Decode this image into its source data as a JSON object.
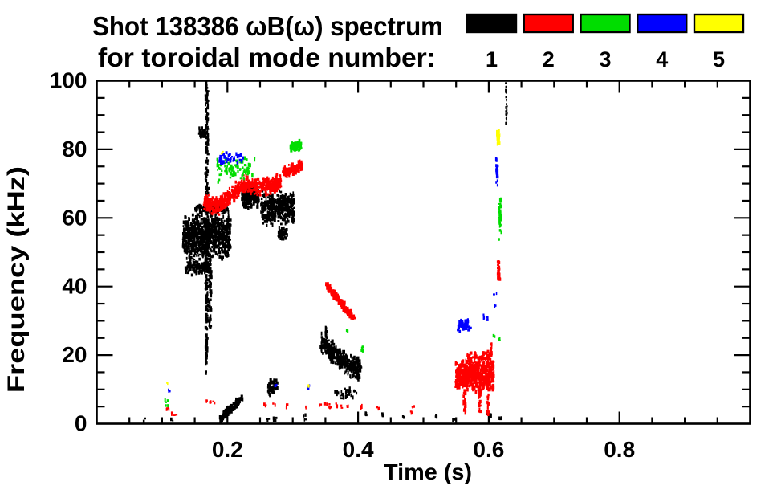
{
  "header": {
    "title_line1": "Shot 138386 ωB(ω) spectrum",
    "title_line2": "for toroidal mode number:"
  },
  "legend": {
    "items": [
      {
        "label": "1",
        "color": "#000000"
      },
      {
        "label": "2",
        "color": "#ff0000"
      },
      {
        "label": "3",
        "color": "#00dd00"
      },
      {
        "label": "4",
        "color": "#0000ff"
      },
      {
        "label": "5",
        "color": "#ffff00"
      }
    ]
  },
  "chart_data": {
    "type": "scatter",
    "title": "Shot 138386 ωB(ω) spectrum for toroidal mode number:",
    "xlabel": "Time (s)",
    "ylabel": "Frequency (kHz)",
    "xlim": [
      0,
      1.0
    ],
    "ylim": [
      0,
      100
    ],
    "xticks": [
      0.2,
      0.4,
      0.6,
      0.8
    ],
    "xtick_labels": [
      "0.2",
      "0.4",
      "0.6",
      "0.8"
    ],
    "x_minor_step": 0.05,
    "yticks": [
      0,
      20,
      40,
      60,
      80,
      100
    ],
    "ytick_labels": [
      "0",
      "20",
      "40",
      "60",
      "80",
      "100"
    ],
    "y_minor_step": 5,
    "grid": false,
    "legend_position": "top-right",
    "series": [
      {
        "name": "n=1",
        "color": "#000000",
        "features": [
          {
            "k": "cloud",
            "t": [
              0.132,
              0.205
            ],
            "f": [
              47,
              62
            ],
            "n": 750
          },
          {
            "k": "cloud",
            "t": [
              0.135,
              0.175
            ],
            "f": [
              43,
              48
            ],
            "n": 120
          },
          {
            "k": "cloud",
            "t": [
              0.15,
              0.202
            ],
            "f": [
              61,
              64
            ],
            "n": 100
          },
          {
            "k": "vline",
            "t": 0.1685,
            "f": [
              30,
              99.5
            ],
            "n": 240,
            "w": 3.5
          },
          {
            "k": "vline",
            "t": 0.168,
            "f": [
              14,
              30
            ],
            "n": 45,
            "w": 2
          },
          {
            "k": "vline",
            "t": 0.174,
            "f": [
              28,
              47
            ],
            "n": 50,
            "w": 2.5
          },
          {
            "k": "cloud",
            "t": [
              0.157,
              0.168
            ],
            "f": [
              83,
              86.5
            ],
            "n": 45
          },
          {
            "k": "cloud",
            "t": [
              0.222,
              0.248
            ],
            "f": [
              62.5,
              70.5
            ],
            "n": 230
          },
          {
            "k": "cloud",
            "t": [
              0.252,
              0.302
            ],
            "f": [
              57.5,
              68.5
            ],
            "n": 380
          },
          {
            "k": "cloud",
            "t": [
              0.278,
              0.292
            ],
            "f": [
              53.5,
              58
            ],
            "n": 45
          },
          {
            "k": "streak",
            "p": [
              [
                0.19,
                1.5
              ],
              [
                0.2,
                3.5
              ],
              [
                0.21,
                5
              ],
              [
                0.223,
                7.8
              ]
            ],
            "s": 1.3,
            "n": 130
          },
          {
            "k": "cloud",
            "t": [
              0.262,
              0.277
            ],
            "f": [
              8,
              13.5
            ],
            "n": 50
          },
          {
            "k": "streak",
            "p": [
              [
                0.345,
                23.5
              ],
              [
                0.357,
                21.5
              ],
              [
                0.372,
                19
              ],
              [
                0.388,
                16.5
              ],
              [
                0.403,
                15.5
              ]
            ],
            "s": 3.6,
            "n": 380
          },
          {
            "k": "vline",
            "t": 0.3515,
            "f": [
              23,
              28
            ],
            "n": 16,
            "w": 2
          },
          {
            "k": "cloud",
            "t": [
              0.362,
              0.398
            ],
            "f": [
              7,
              10.5
            ],
            "n": 28
          },
          {
            "k": "vline",
            "t": 0.627,
            "f": [
              87,
              99.5
            ],
            "n": 30,
            "w": 1.8,
            "sz": 0.7
          },
          {
            "k": "dots",
            "p": [
              [
                0.074,
                1
              ],
              [
                0.115,
                1.3
              ],
              [
                0.19,
                0.8
              ],
              [
                0.262,
                1
              ],
              [
                0.273,
                1.2
              ],
              [
                0.318,
                2.4
              ],
              [
                0.32,
                1
              ],
              [
                0.412,
                2.8
              ],
              [
                0.438,
                2.6
              ],
              [
                0.468,
                1.6
              ],
              [
                0.52,
                1.9
              ],
              [
                0.546,
                1.5
              ],
              [
                0.599,
                2.6
              ],
              [
                0.603,
                2.2
              ],
              [
                0.618,
                1.2
              ]
            ]
          }
        ]
      },
      {
        "name": "n=2",
        "color": "#ff0000",
        "features": [
          {
            "k": "streak",
            "p": [
              [
                0.165,
                65
              ],
              [
                0.175,
                63.5
              ],
              [
                0.185,
                63.5
              ],
              [
                0.198,
                65.5
              ],
              [
                0.212,
                67.5
              ],
              [
                0.225,
                70
              ],
              [
                0.24,
                69
              ],
              [
                0.255,
                69
              ],
              [
                0.268,
                69.5
              ],
              [
                0.281,
                70.5
              ]
            ],
            "s": 2.8,
            "n": 620
          },
          {
            "k": "streak",
            "p": [
              [
                0.286,
                73
              ],
              [
                0.296,
                74
              ],
              [
                0.306,
                74.5
              ],
              [
                0.314,
                75.5
              ]
            ],
            "s": 1.8,
            "n": 130
          },
          {
            "k": "streak",
            "p": [
              [
                0.352,
                40.8
              ],
              [
                0.362,
                38
              ],
              [
                0.372,
                35.8
              ],
              [
                0.382,
                33.2
              ],
              [
                0.3935,
                30.6
              ]
            ],
            "s": 1.3,
            "n": 190
          },
          {
            "k": "cloud",
            "t": [
              0.549,
              0.608
            ],
            "f": [
              9,
              19
            ],
            "n": 600
          },
          {
            "k": "cloud",
            "t": [
              0.565,
              0.603
            ],
            "f": [
              17,
              21.5
            ],
            "n": 70
          },
          {
            "k": "vline",
            "t": 0.563,
            "f": [
              3,
              10
            ],
            "n": 22,
            "w": 2.5
          },
          {
            "k": "vline",
            "t": 0.586,
            "f": [
              3.5,
              10
            ],
            "n": 20,
            "w": 2.5
          },
          {
            "k": "vline",
            "t": 0.599,
            "f": [
              2.5,
              9
            ],
            "n": 18,
            "w": 2.5
          },
          {
            "k": "vline",
            "t": 0.6035,
            "f": [
              19,
              23.5
            ],
            "n": 14,
            "w": 2
          },
          {
            "k": "vline",
            "t": 0.6155,
            "f": [
              42,
              47.5
            ],
            "n": 32,
            "w": 2.8
          },
          {
            "k": "dots",
            "p": [
              [
                0.109,
                4.2
              ],
              [
                0.114,
                2.8
              ],
              [
                0.12,
                2.5
              ],
              [
                0.168,
                6.8
              ],
              [
                0.174,
                6.1
              ],
              [
                0.18,
                6.4
              ],
              [
                0.257,
                5.4
              ],
              [
                0.272,
                5.5
              ],
              [
                0.291,
                5.1
              ],
              [
                0.32,
                5
              ],
              [
                0.342,
                5.7
              ],
              [
                0.351,
                5.4
              ],
              [
                0.358,
                5.2
              ],
              [
                0.366,
                5.5
              ],
              [
                0.373,
                5.1
              ],
              [
                0.385,
                5
              ],
              [
                0.404,
                4.8
              ],
              [
                0.431,
                4.6
              ],
              [
                0.481,
                3.5
              ],
              [
                0.485,
                4.7
              ]
            ]
          }
        ]
      },
      {
        "name": "n=3",
        "color": "#00dd00",
        "features": [
          {
            "k": "cloud",
            "t": [
              0.183,
              0.24
            ],
            "f": [
              70.5,
              77.5
            ],
            "n": 70
          },
          {
            "k": "dots",
            "p": [
              [
                0.185,
                70.8
              ],
              [
                0.2,
                73.5
              ],
              [
                0.207,
                74.3
              ],
              [
                0.214,
                75.2
              ],
              [
                0.222,
                76
              ],
              [
                0.232,
                77
              ],
              [
                0.24,
                77.3
              ]
            ]
          },
          {
            "k": "cloud",
            "t": [
              0.296,
              0.3135
            ],
            "f": [
              79.5,
              82.5
            ],
            "n": 90
          },
          {
            "k": "vline",
            "t": 0.6175,
            "f": [
              57.5,
              65.5
            ],
            "n": 40,
            "w": 2.6
          },
          {
            "k": "dots",
            "p": [
              [
                0.385,
                27.3
              ],
              [
                0.406,
                21.6
              ],
              [
                0.408,
                22.4
              ],
              [
                0.609,
                25.2
              ],
              [
                0.6165,
                24.7
              ],
              [
                0.1065,
                6.5
              ],
              [
                0.107,
                5.2
              ],
              [
                0.618,
                54
              ],
              [
                0.618,
                56
              ]
            ]
          }
        ]
      },
      {
        "name": "n=4",
        "color": "#0000ff",
        "features": [
          {
            "k": "cloud",
            "t": [
              0.188,
              0.224
            ],
            "f": [
              74.5,
              79.5
            ],
            "n": 40
          },
          {
            "k": "streak",
            "p": [
              [
                0.553,
                27.2
              ],
              [
                0.5575,
                29.8
              ],
              [
                0.562,
                27.5
              ],
              [
                0.5665,
                30.2
              ],
              [
                0.5715,
                27.3
              ]
            ],
            "s": 0.7,
            "n": 75
          },
          {
            "k": "vline",
            "t": 0.6125,
            "f": [
              69,
              77.5
            ],
            "n": 20,
            "w": 2
          },
          {
            "k": "dots",
            "p": [
              [
                0.594,
                31.2
              ],
              [
                0.5965,
                30.7
              ],
              [
                0.61,
                34.6
              ],
              [
                0.111,
                9.4
              ],
              [
                0.2745,
                11.1
              ],
              [
                0.325,
                10.8
              ],
              [
                0.61,
                37.8
              ]
            ]
          }
        ]
      },
      {
        "name": "n=5",
        "color": "#ffff00",
        "features": [
          {
            "k": "vline",
            "t": 0.6145,
            "f": [
              81.5,
              85.5
            ],
            "n": 40,
            "w": 2.6
          },
          {
            "k": "dots",
            "p": [
              [
                0.191,
                78.9
              ],
              [
                0.108,
                11.5
              ],
              [
                0.3235,
                11.3
              ]
            ]
          }
        ]
      }
    ]
  }
}
